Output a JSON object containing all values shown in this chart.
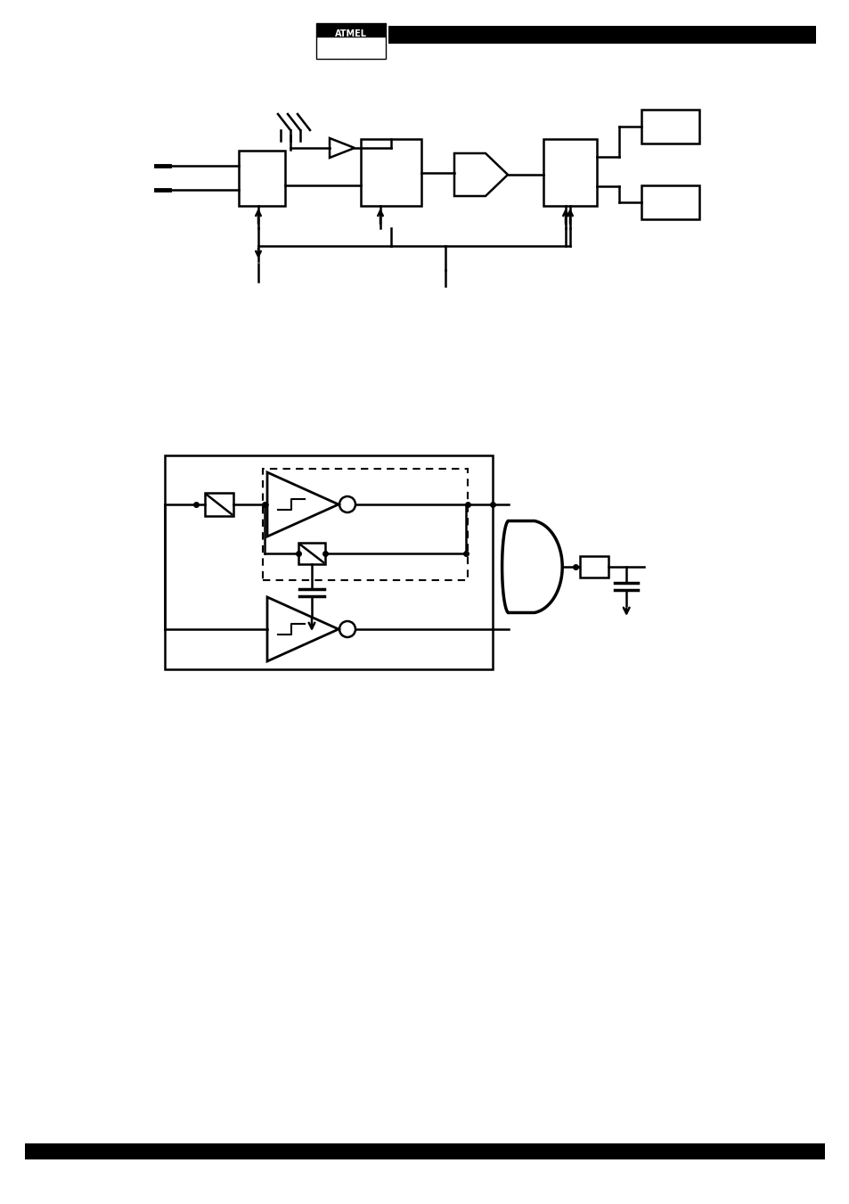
{
  "bg_color": "#ffffff",
  "line_color": "#000000",
  "page_width": 9.54,
  "page_height": 13.51
}
